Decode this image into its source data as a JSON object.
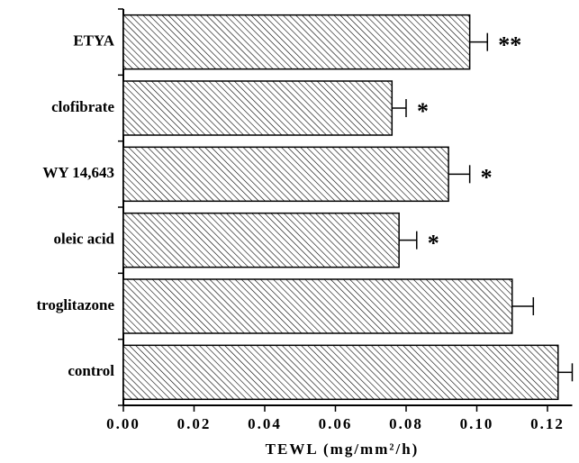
{
  "chart_data": {
    "type": "bar",
    "orientation": "horizontal",
    "xlabel": "TEWL   (mg/mm²/h)",
    "categories": [
      "ETYA",
      "clofibrate",
      "WY 14,643",
      "oleic acid",
      "troglitazone",
      "control"
    ],
    "values": [
      0.098,
      0.076,
      0.092,
      0.078,
      0.11,
      0.123
    ],
    "errors": [
      0.005,
      0.004,
      0.006,
      0.005,
      0.006,
      0.004
    ],
    "annotations": [
      "**",
      "*",
      "*",
      "*",
      null,
      null
    ],
    "color": "#000000",
    "xlim": [
      0,
      0.127
    ],
    "xticks": [
      {
        "value": 0,
        "label": "0.00"
      },
      {
        "value": 0.02,
        "label": "0.02"
      },
      {
        "value": 0.04,
        "label": "0.04"
      },
      {
        "value": 0.06,
        "label": "0.06"
      },
      {
        "value": 0.08,
        "label": "0.08"
      },
      {
        "value": 0.1,
        "label": "0.10"
      },
      {
        "value": 0.12,
        "label": "0.12"
      }
    ]
  }
}
